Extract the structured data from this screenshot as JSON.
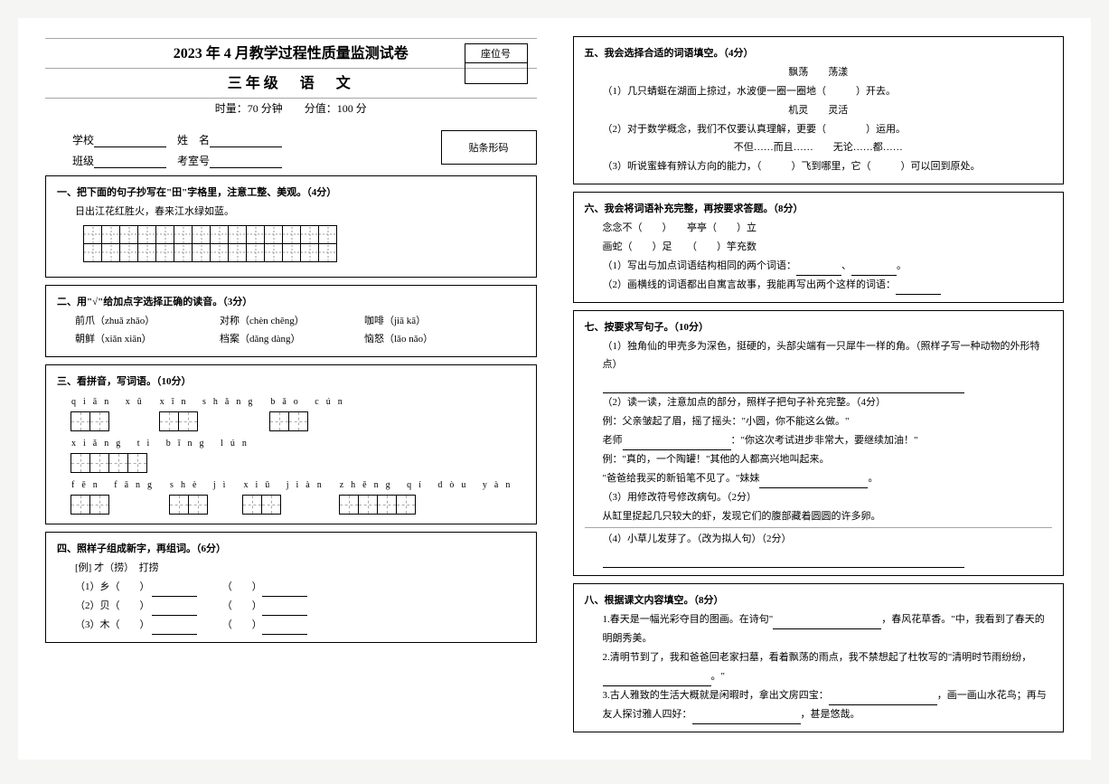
{
  "header": {
    "main_title": "2023 年 4 月教学过程性质量监测试卷",
    "subtitle": "三年级　语　文",
    "meta": "时量：70 分钟　　分值：100 分",
    "seat_label": "座位号",
    "school_label": "学校",
    "name_label": "姓　名",
    "class_label": "班级",
    "room_label": "考室号",
    "barcode_label": "贴条形码"
  },
  "q1": {
    "title": "一、把下面的句子抄写在\"田\"字格里，注意工整、美观。（4分）",
    "sentence": "日出江花红胜火，春来江水绿如蓝。",
    "cols": 14,
    "rows": 2
  },
  "q2": {
    "title": "二、用\"√\"给加点字选择正确的读音。（3分）",
    "items": [
      [
        "前爪（zhuǎ  zhǎo）",
        "对称（chèn  chēng）",
        "咖啡（jiā  kā）"
      ],
      [
        "朝鲜（xiǎn  xiān）",
        "档案（dǎng  dàng）",
        "恼怒（lǎo  nǎo）"
      ]
    ]
  },
  "q3": {
    "title": "三、看拼音，写词语。（10分）",
    "row1": [
      {
        "py": "qiān  xū",
        "n": 2
      },
      {
        "py": "xīn  shǎng",
        "n": 2
      },
      {
        "py": "bǎo  cún",
        "n": 2
      },
      {
        "py": "xiǎng  tì  bīng  lún",
        "n": 4
      }
    ],
    "row2": [
      {
        "py": "fēn  fāng",
        "n": 2
      },
      {
        "py": "shè  jì",
        "n": 2
      },
      {
        "py": "xiū  jiàn",
        "n": 2
      },
      {
        "py": "zhēng  qí  dòu  yàn",
        "n": 4
      }
    ]
  },
  "q4": {
    "title": "四、照样子组成新字，再组词。（6分）",
    "example": "[例] 才（捞）　打捞",
    "items": [
      "（1）乡（　　）",
      "（2）贝（　　）",
      "（3）木（　　）"
    ]
  },
  "q5": {
    "title": "五、我会选择合适的词语填空。（4分）",
    "pair1": "飘荡　　荡漾",
    "line1": "（1）几只蜻蜓在湖面上掠过，水波便一圈一圈地（　　　）开去。",
    "pair2": "机灵　　灵活",
    "line2a": "（2）对于数学概念，我们不仅要认真理解，更要（　　　　）运用。",
    "line2b": "不但……而且……　　无论……都……",
    "line3": "（3）听说蜜蜂有辨认方向的能力，（　　　）飞到哪里，它（　　　）可以回到原处。"
  },
  "q6": {
    "title": "六、我会将词语补充完整，再按要求答题。（8分）",
    "row1": "念念不（　　）　　亭亭（　　）立",
    "row2": "画蛇（　　）足　　（　　）竽充数",
    "sub1": "（1）写出与加点词语结构相同的两个词语：",
    "sub2": "（2）画横线的词语都出自寓言故事，我能再写出两个这样的词语："
  },
  "q7": {
    "title": "七、按要求写句子。（10分）",
    "p1": "（1）独角仙的甲壳多为深色，挺硬的，头部尖端有一只犀牛一样的角。（照样子写一种动物的外形特点）",
    "p2": "（2）读一读，注意加点的部分，照样子把句子补充完整。（4分）",
    "ex1": "例：父亲皱起了眉，摇了摇头：\"小圆，你不能这么做。\"",
    "l1a": "老师",
    "l1b": "：\"你这次考试进步非常大，要继续加油！\"",
    "ex2": "例：\"真的，一个陶罐！\"其他的人都高兴地叫起来。",
    "l2": "\"爸爸给我买的新铅笔不见了。\"妹妹",
    "p3": "（3）用修改符号修改病句。（2分）",
    "s3": "从缸里捉起几只较大的虾，发现它们的腹部藏着圆圆的许多卵。",
    "p4": "（4）小草儿发芽了。（改为拟人句）（2分）"
  },
  "q8": {
    "title": "八、根据课文内容填空。（8分）",
    "p1a": "1.春天是一幅光彩夺目的图画。在诗句\"",
    "p1b": "，春风花草香。\"中，我看到了春天的明朗秀美。",
    "p2": "2.清明节到了，我和爸爸回老家扫墓，看着飘荡的雨点，我不禁想起了杜牧写的\"清明时节雨纷纷，",
    "p2b": "。\"",
    "p3a": "3.古人雅致的生活大概就是闲暇时，拿出文房四宝：",
    "p3b": "，画一画山水花鸟；再与友人探讨雅人四好：",
    "p3c": "，甚是悠哉。"
  }
}
